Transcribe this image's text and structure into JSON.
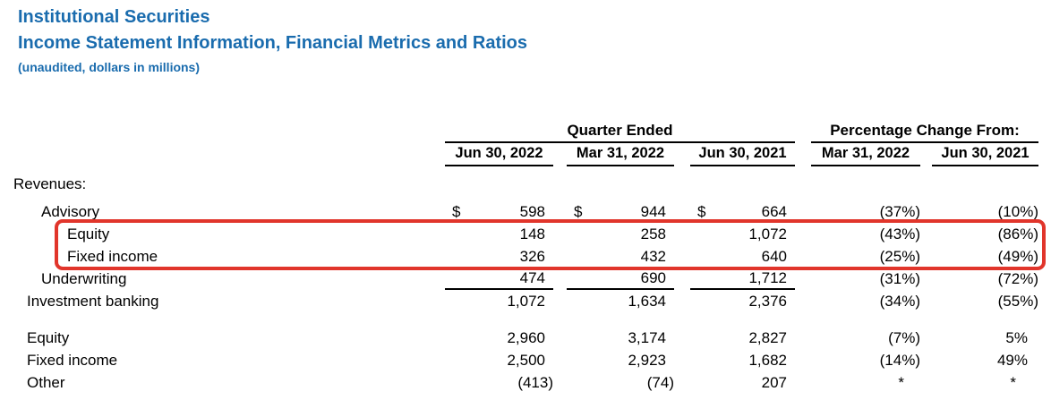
{
  "page": {
    "title": "Institutional Securities",
    "subtitle": "Income Statement Information, Financial Metrics and Ratios",
    "note": "(unaudited, dollars in millions)"
  },
  "table": {
    "group_headers": {
      "quarter_ended": "Quarter Ended",
      "pct_change_from": "Percentage Change From:"
    },
    "column_headers": [
      "Jun 30, 2022",
      "Mar 31, 2022",
      "Jun 30, 2021",
      "Mar 31, 2022",
      "Jun 30, 2021"
    ],
    "currency_symbol": "$",
    "section_label": "Revenues:",
    "rows": [
      {
        "label": "Revenues:",
        "q1": "",
        "q2": "",
        "q3": "",
        "p1": "",
        "p2": ""
      },
      {
        "label": "Advisory",
        "q1": "598",
        "q2": "944",
        "q3": "664",
        "p1": "(37%)",
        "p2": "(10%)"
      },
      {
        "label": "Equity",
        "q1": "148",
        "q2": "258",
        "q3": "1,072",
        "p1": "(43%)",
        "p2": "(86%)"
      },
      {
        "label": "Fixed income",
        "q1": "326",
        "q2": "432",
        "q3": "640",
        "p1": "(25%)",
        "p2": "(49%)"
      },
      {
        "label": "Underwriting",
        "q1": "474",
        "q2": "690",
        "q3": "1,712",
        "p1": "(31%)",
        "p2": "(72%)"
      },
      {
        "label": "Investment banking",
        "q1": "1,072",
        "q2": "1,634",
        "q3": "2,376",
        "p1": "(34%)",
        "p2": "(55%)"
      },
      {
        "label": "Equity",
        "q1": "2,960",
        "q2": "3,174",
        "q3": "2,827",
        "p1": "(7%)",
        "p2": "5%"
      },
      {
        "label": "Fixed income",
        "q1": "2,500",
        "q2": "2,923",
        "q3": "1,682",
        "p1": "(14%)",
        "p2": "49%"
      },
      {
        "label": "Other",
        "q1": "(413)",
        "q2": "(74)",
        "q3": "207",
        "p1": "*",
        "p2": "*"
      }
    ],
    "annotation": {
      "type": "red-highlight-box",
      "highlighted_rows": [
        "Equity",
        "Fixed income"
      ]
    }
  },
  "colors": {
    "heading_blue": "#1A6CAE",
    "highlight_red": "#E1352B",
    "text_black": "#000000",
    "rule_black": "#000000"
  }
}
